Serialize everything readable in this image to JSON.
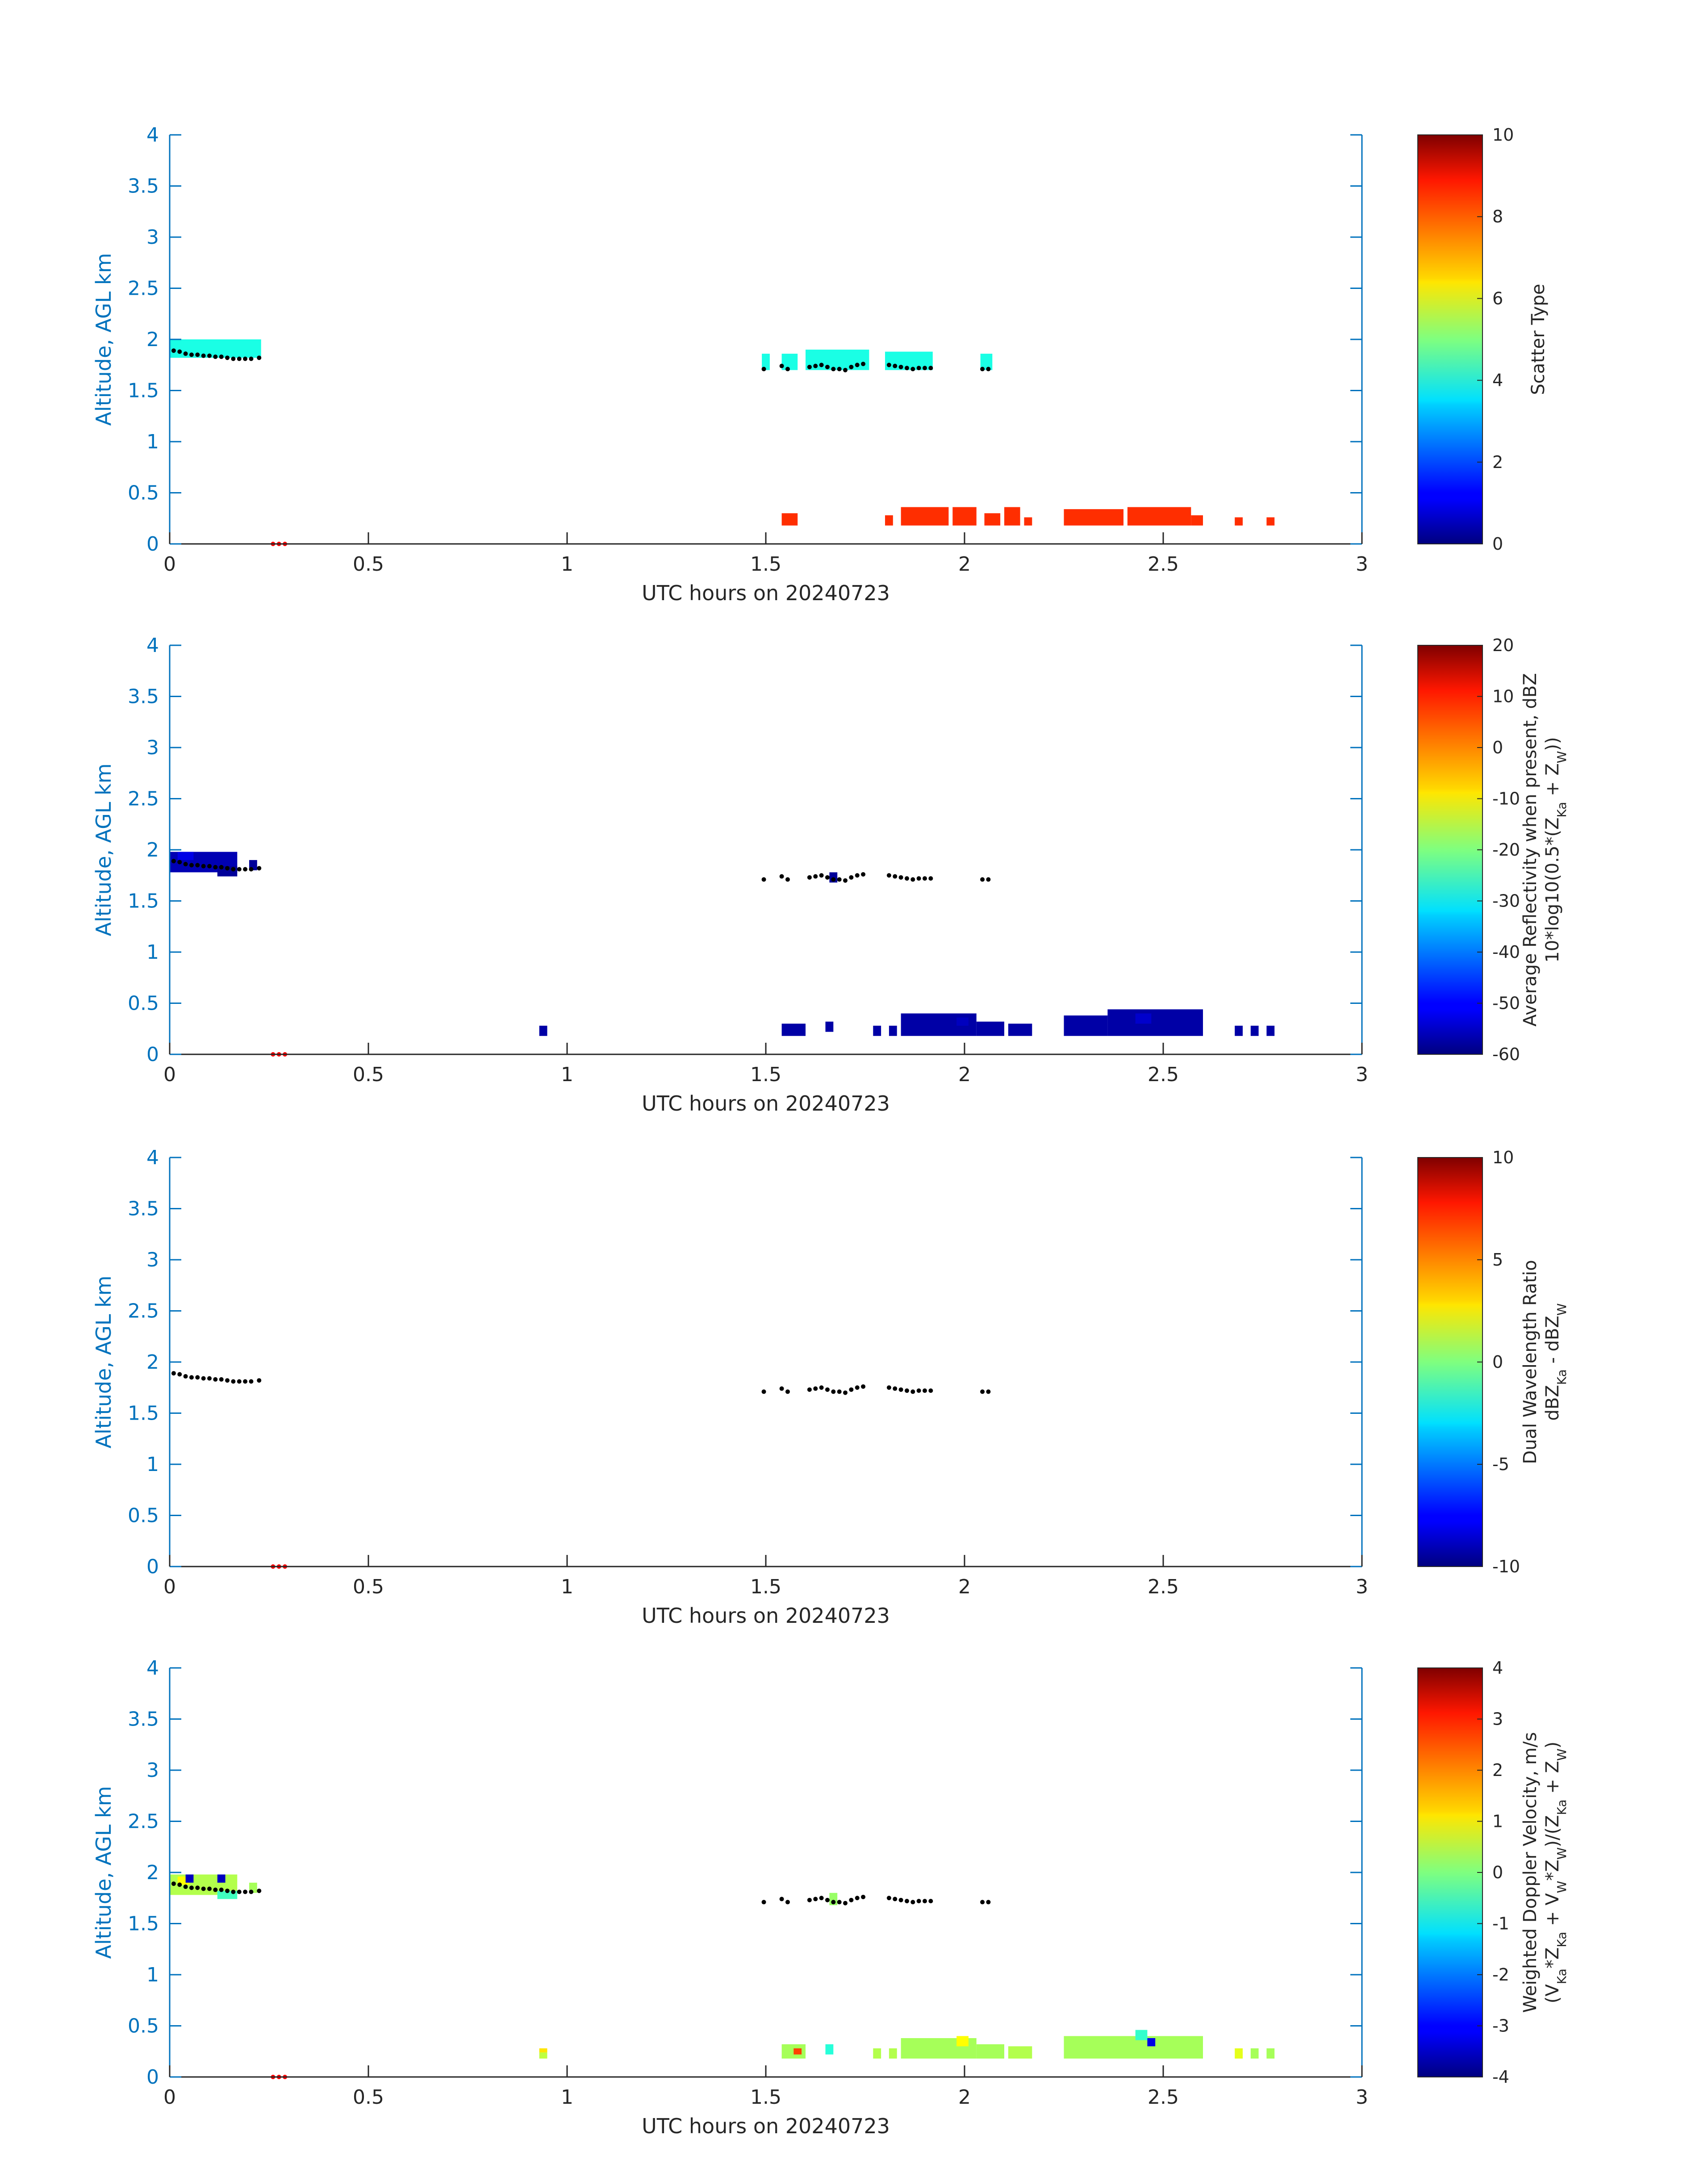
{
  "chart_data": [
    {
      "type": "heatmap",
      "xlabel": "UTC hours on 20240723",
      "ylabel": "Altitude, AGL km",
      "xlim": [
        0,
        3
      ],
      "ylim": [
        0,
        4
      ],
      "xticks": [
        "0",
        "0.5",
        "1",
        "1.5",
        "2",
        "2.5",
        "3"
      ],
      "yticks": [
        "0",
        "0.5",
        "1",
        "1.5",
        "2",
        "2.5",
        "3",
        "3.5",
        "4"
      ],
      "colorbar": {
        "label": "Scatter Type",
        "label2": "",
        "min": 0,
        "max": 10,
        "ticks": [
          "0",
          "2",
          "4",
          "6",
          "8",
          "10"
        ]
      },
      "cells": [
        {
          "x0": 0.0,
          "x1": 0.23,
          "y0": 1.82,
          "y1": 2.0,
          "v": 4
        },
        {
          "x0": 1.49,
          "x1": 1.51,
          "y0": 1.7,
          "y1": 1.86,
          "v": 4
        },
        {
          "x0": 1.54,
          "x1": 1.58,
          "y0": 1.7,
          "y1": 1.86,
          "v": 4
        },
        {
          "x0": 1.6,
          "x1": 1.76,
          "y0": 1.7,
          "y1": 1.9,
          "v": 4
        },
        {
          "x0": 1.8,
          "x1": 1.92,
          "y0": 1.7,
          "y1": 1.88,
          "v": 4
        },
        {
          "x0": 2.04,
          "x1": 2.07,
          "y0": 1.7,
          "y1": 1.86,
          "v": 4
        },
        {
          "x0": 1.54,
          "x1": 1.58,
          "y0": 0.18,
          "y1": 0.3,
          "v": 8.3
        },
        {
          "x0": 1.8,
          "x1": 1.82,
          "y0": 0.18,
          "y1": 0.28,
          "v": 8.3
        },
        {
          "x0": 1.84,
          "x1": 1.96,
          "y0": 0.18,
          "y1": 0.36,
          "v": 8.3
        },
        {
          "x0": 1.97,
          "x1": 2.03,
          "y0": 0.18,
          "y1": 0.36,
          "v": 8.3
        },
        {
          "x0": 2.05,
          "x1": 2.09,
          "y0": 0.18,
          "y1": 0.3,
          "v": 8.3
        },
        {
          "x0": 2.1,
          "x1": 2.14,
          "y0": 0.18,
          "y1": 0.36,
          "v": 8.3
        },
        {
          "x0": 2.15,
          "x1": 2.17,
          "y0": 0.18,
          "y1": 0.26,
          "v": 8.3
        },
        {
          "x0": 2.25,
          "x1": 2.4,
          "y0": 0.18,
          "y1": 0.34,
          "v": 8.3
        },
        {
          "x0": 2.41,
          "x1": 2.57,
          "y0": 0.18,
          "y1": 0.36,
          "v": 8.3
        },
        {
          "x0": 2.57,
          "x1": 2.6,
          "y0": 0.18,
          "y1": 0.28,
          "v": 8.3
        },
        {
          "x0": 2.68,
          "x1": 2.7,
          "y0": 0.18,
          "y1": 0.26,
          "v": 8.3
        },
        {
          "x0": 2.76,
          "x1": 2.78,
          "y0": 0.18,
          "y1": 0.26,
          "v": 8.3
        }
      ]
    },
    {
      "type": "heatmap",
      "xlabel": "UTC hours on 20240723",
      "ylabel": "Altitude, AGL km",
      "xlim": [
        0,
        3
      ],
      "ylim": [
        0,
        4
      ],
      "xticks": [
        "0",
        "0.5",
        "1",
        "1.5",
        "2",
        "2.5",
        "3"
      ],
      "yticks": [
        "0",
        "0.5",
        "1",
        "1.5",
        "2",
        "2.5",
        "3",
        "3.5",
        "4"
      ],
      "colorbar": {
        "label": "Average Reflectivity when present, dBZ",
        "label2": "10*log10(0.5*(Z_Ka + Z_W))",
        "min": -60,
        "max": 20,
        "ticks": [
          "-60",
          "-50",
          "-40",
          "-30",
          "-20",
          "-10",
          "0",
          "10",
          "20"
        ]
      },
      "cells": [
        {
          "x0": 0.0,
          "x1": 0.17,
          "y0": 1.78,
          "y1": 1.98,
          "v": -56
        },
        {
          "x0": 0.02,
          "x1": 0.06,
          "y0": 1.9,
          "y1": 1.98,
          "v": -52
        },
        {
          "x0": 0.12,
          "x1": 0.17,
          "y0": 1.74,
          "y1": 1.84,
          "v": -58
        },
        {
          "x0": 0.2,
          "x1": 0.22,
          "y0": 1.8,
          "y1": 1.9,
          "v": -58
        },
        {
          "x0": 1.66,
          "x1": 1.68,
          "y0": 1.68,
          "y1": 1.78,
          "v": -58
        },
        {
          "x0": 0.93,
          "x1": 0.95,
          "y0": 0.18,
          "y1": 0.28,
          "v": -57
        },
        {
          "x0": 1.54,
          "x1": 1.6,
          "y0": 0.18,
          "y1": 0.3,
          "v": -57
        },
        {
          "x0": 1.65,
          "x1": 1.67,
          "y0": 0.22,
          "y1": 0.32,
          "v": -57
        },
        {
          "x0": 1.77,
          "x1": 1.79,
          "y0": 0.18,
          "y1": 0.28,
          "v": -57
        },
        {
          "x0": 1.81,
          "x1": 1.83,
          "y0": 0.18,
          "y1": 0.28,
          "v": -57
        },
        {
          "x0": 1.84,
          "x1": 2.03,
          "y0": 0.18,
          "y1": 0.4,
          "v": -57
        },
        {
          "x0": 1.98,
          "x1": 2.01,
          "y0": 0.28,
          "y1": 0.36,
          "v": -55
        },
        {
          "x0": 2.03,
          "x1": 2.1,
          "y0": 0.18,
          "y1": 0.32,
          "v": -57
        },
        {
          "x0": 2.11,
          "x1": 2.17,
          "y0": 0.18,
          "y1": 0.3,
          "v": -57
        },
        {
          "x0": 2.25,
          "x1": 2.36,
          "y0": 0.18,
          "y1": 0.38,
          "v": -57
        },
        {
          "x0": 2.36,
          "x1": 2.6,
          "y0": 0.18,
          "y1": 0.44,
          "v": -57
        },
        {
          "x0": 2.43,
          "x1": 2.47,
          "y0": 0.3,
          "y1": 0.4,
          "v": -54
        },
        {
          "x0": 2.68,
          "x1": 2.7,
          "y0": 0.18,
          "y1": 0.28,
          "v": -57
        },
        {
          "x0": 2.72,
          "x1": 2.74,
          "y0": 0.18,
          "y1": 0.28,
          "v": -57
        },
        {
          "x0": 2.76,
          "x1": 2.78,
          "y0": 0.18,
          "y1": 0.28,
          "v": -57
        }
      ]
    },
    {
      "type": "heatmap",
      "xlabel": "UTC hours on 20240723",
      "ylabel": "Altitude, AGL km",
      "xlim": [
        0,
        3
      ],
      "ylim": [
        0,
        4
      ],
      "xticks": [
        "0",
        "0.5",
        "1",
        "1.5",
        "2",
        "2.5",
        "3"
      ],
      "yticks": [
        "0",
        "0.5",
        "1",
        "1.5",
        "2",
        "2.5",
        "3",
        "3.5",
        "4"
      ],
      "colorbar": {
        "label": "Dual Wavelength Ratio",
        "label2": "dBZ_Ka - dBZ_W",
        "min": -10,
        "max": 10,
        "ticks": [
          "-10",
          "-5",
          "0",
          "5",
          "10"
        ]
      },
      "cells": []
    },
    {
      "type": "heatmap",
      "xlabel": "UTC hours on 20240723",
      "ylabel": "Altitude, AGL km",
      "xlim": [
        0,
        3
      ],
      "ylim": [
        0,
        4
      ],
      "xticks": [
        "0",
        "0.5",
        "1",
        "1.5",
        "2",
        "2.5",
        "3"
      ],
      "yticks": [
        "0",
        "0.5",
        "1",
        "1.5",
        "2",
        "2.5",
        "3",
        "3.5",
        "4"
      ],
      "colorbar": {
        "label": "Weighted Doppler Velocity, m/s",
        "label2": "(V_Ka*Z_Ka + V_W*Z_W)/(Z_Ka + Z_W)",
        "min": -4,
        "max": 4,
        "ticks": [
          "-4",
          "-3",
          "-2",
          "-1",
          "0",
          "1",
          "2",
          "3",
          "4"
        ]
      },
      "cells": [
        {
          "x0": 0.0,
          "x1": 0.17,
          "y0": 1.78,
          "y1": 1.98,
          "v": 0.4
        },
        {
          "x0": 0.02,
          "x1": 0.05,
          "y0": 1.88,
          "y1": 1.96,
          "v": 1.0
        },
        {
          "x0": 0.04,
          "x1": 0.06,
          "y0": 1.9,
          "y1": 1.98,
          "v": -3.5
        },
        {
          "x0": 0.12,
          "x1": 0.17,
          "y0": 1.74,
          "y1": 1.82,
          "v": -0.5
        },
        {
          "x0": 0.12,
          "x1": 0.14,
          "y0": 1.9,
          "y1": 1.98,
          "v": -3.5
        },
        {
          "x0": 0.2,
          "x1": 0.22,
          "y0": 1.8,
          "y1": 1.9,
          "v": 0.3
        },
        {
          "x0": 1.66,
          "x1": 1.68,
          "y0": 1.68,
          "y1": 1.8,
          "v": 0.2
        },
        {
          "x0": 0.93,
          "x1": 0.95,
          "y0": 0.18,
          "y1": 0.24,
          "v": 0.5
        },
        {
          "x0": 0.93,
          "x1": 0.95,
          "y0": 0.24,
          "y1": 0.28,
          "v": 1.2
        },
        {
          "x0": 1.54,
          "x1": 1.6,
          "y0": 0.18,
          "y1": 0.32,
          "v": 0.3
        },
        {
          "x0": 1.57,
          "x1": 1.59,
          "y0": 0.22,
          "y1": 0.28,
          "v": 2.5
        },
        {
          "x0": 1.65,
          "x1": 1.67,
          "y0": 0.22,
          "y1": 0.32,
          "v": -0.7
        },
        {
          "x0": 1.77,
          "x1": 1.79,
          "y0": 0.18,
          "y1": 0.28,
          "v": 0.4
        },
        {
          "x0": 1.81,
          "x1": 1.83,
          "y0": 0.18,
          "y1": 0.28,
          "v": 0.4
        },
        {
          "x0": 1.84,
          "x1": 2.03,
          "y0": 0.18,
          "y1": 0.38,
          "v": 0.3
        },
        {
          "x0": 1.98,
          "x1": 2.01,
          "y0": 0.3,
          "y1": 0.4,
          "v": 1.0
        },
        {
          "x0": 2.03,
          "x1": 2.1,
          "y0": 0.18,
          "y1": 0.32,
          "v": 0.3
        },
        {
          "x0": 2.11,
          "x1": 2.17,
          "y0": 0.18,
          "y1": 0.3,
          "v": 0.4
        },
        {
          "x0": 2.25,
          "x1": 2.6,
          "y0": 0.18,
          "y1": 0.4,
          "v": 0.3
        },
        {
          "x0": 2.43,
          "x1": 2.46,
          "y0": 0.36,
          "y1": 0.46,
          "v": -0.6
        },
        {
          "x0": 2.46,
          "x1": 2.48,
          "y0": 0.3,
          "y1": 0.38,
          "v": -3.2
        },
        {
          "x0": 2.68,
          "x1": 2.7,
          "y0": 0.18,
          "y1": 0.28,
          "v": 0.8
        },
        {
          "x0": 2.72,
          "x1": 2.74,
          "y0": 0.18,
          "y1": 0.28,
          "v": 0.3
        },
        {
          "x0": 2.76,
          "x1": 2.78,
          "y0": 0.18,
          "y1": 0.28,
          "v": 0.3
        }
      ]
    }
  ],
  "cloud_base_points": [
    [
      0.01,
      1.89
    ],
    [
      0.025,
      1.88
    ],
    [
      0.04,
      1.86
    ],
    [
      0.055,
      1.85
    ],
    [
      0.07,
      1.85
    ],
    [
      0.085,
      1.84
    ],
    [
      0.1,
      1.84
    ],
    [
      0.115,
      1.83
    ],
    [
      0.13,
      1.83
    ],
    [
      0.145,
      1.82
    ],
    [
      0.16,
      1.81
    ],
    [
      0.175,
      1.81
    ],
    [
      0.19,
      1.81
    ],
    [
      0.205,
      1.81
    ],
    [
      0.225,
      1.82
    ],
    [
      1.495,
      1.71
    ],
    [
      1.54,
      1.74
    ],
    [
      1.555,
      1.71
    ],
    [
      1.61,
      1.73
    ],
    [
      1.625,
      1.74
    ],
    [
      1.64,
      1.75
    ],
    [
      1.655,
      1.73
    ],
    [
      1.67,
      1.71
    ],
    [
      1.685,
      1.71
    ],
    [
      1.7,
      1.7
    ],
    [
      1.715,
      1.73
    ],
    [
      1.73,
      1.75
    ],
    [
      1.745,
      1.76
    ],
    [
      1.81,
      1.75
    ],
    [
      1.825,
      1.74
    ],
    [
      1.84,
      1.73
    ],
    [
      1.855,
      1.72
    ],
    [
      1.87,
      1.71
    ],
    [
      1.885,
      1.72
    ],
    [
      1.9,
      1.72
    ],
    [
      1.915,
      1.72
    ],
    [
      2.045,
      1.71
    ],
    [
      2.06,
      1.71
    ]
  ],
  "surface_points": [
    [
      0.26,
      0.0
    ],
    [
      0.275,
      0.0
    ],
    [
      0.29,
      0.0
    ]
  ]
}
